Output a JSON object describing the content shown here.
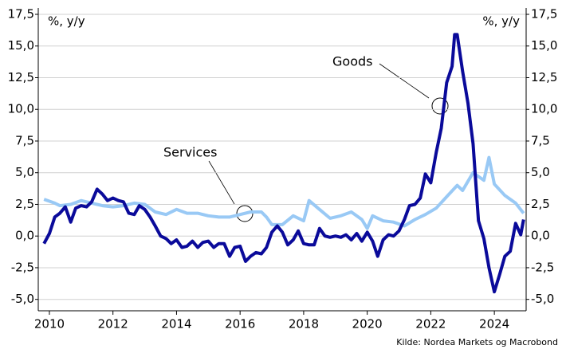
{
  "chart_data": {
    "type": "line",
    "ylabel": "%, y/y",
    "source": "Kilde: Nordea Markets og Macrobond",
    "xlim": [
      2009.65,
      2025.0
    ],
    "xticks": [
      2010,
      2012,
      2014,
      2016,
      2018,
      2020,
      2022,
      2024
    ],
    "ylim": [
      -5.9,
      17.5
    ],
    "yticks": [
      {
        "value": -5,
        "label": "-5,0"
      },
      {
        "value": -2.5,
        "label": "-2,5"
      },
      {
        "value": 0,
        "label": "0,0"
      },
      {
        "value": 2.5,
        "label": "2,5"
      },
      {
        "value": 5,
        "label": "5,0"
      },
      {
        "value": 7.5,
        "label": "7,5"
      },
      {
        "value": 10,
        "label": "10,0"
      },
      {
        "value": 12.5,
        "label": "12,5"
      },
      {
        "value": 15,
        "label": "15,0"
      },
      {
        "value": 17.5,
        "label": "17,5"
      }
    ],
    "grid": true,
    "series": [
      {
        "name": "Goods",
        "color": "#0a0a9a",
        "x": [
          2009.83,
          2010.0,
          2010.17,
          2010.33,
          2010.5,
          2010.67,
          2010.83,
          2011.0,
          2011.17,
          2011.33,
          2011.5,
          2011.67,
          2011.83,
          2012.0,
          2012.17,
          2012.33,
          2012.5,
          2012.67,
          2012.83,
          2013.0,
          2013.17,
          2013.33,
          2013.5,
          2013.67,
          2013.83,
          2014.0,
          2014.17,
          2014.33,
          2014.5,
          2014.67,
          2014.83,
          2015.0,
          2015.17,
          2015.33,
          2015.5,
          2015.67,
          2015.83,
          2016.0,
          2016.17,
          2016.33,
          2016.5,
          2016.67,
          2016.83,
          2017.0,
          2017.17,
          2017.33,
          2017.5,
          2017.67,
          2017.83,
          2018.0,
          2018.17,
          2018.33,
          2018.5,
          2018.67,
          2018.83,
          2019.0,
          2019.17,
          2019.33,
          2019.5,
          2019.67,
          2019.83,
          2020.0,
          2020.17,
          2020.33,
          2020.5,
          2020.67,
          2020.83,
          2021.0,
          2021.17,
          2021.33,
          2021.5,
          2021.67,
          2021.83,
          2022.0,
          2022.17,
          2022.33,
          2022.5,
          2022.67,
          2022.75,
          2022.83,
          2023.0,
          2023.17,
          2023.33,
          2023.5,
          2023.67,
          2023.83,
          2024.0,
          2024.17,
          2024.33,
          2024.5,
          2024.67,
          2024.83,
          2024.92
        ],
        "values": [
          -0.6,
          0.2,
          1.5,
          1.8,
          2.3,
          1.1,
          2.2,
          2.4,
          2.3,
          2.7,
          3.7,
          3.3,
          2.8,
          3.0,
          2.8,
          2.7,
          1.8,
          1.7,
          2.4,
          2.1,
          1.5,
          0.8,
          0.0,
          -0.2,
          -0.6,
          -0.3,
          -0.9,
          -0.8,
          -0.4,
          -0.9,
          -0.5,
          -0.4,
          -0.9,
          -0.6,
          -0.6,
          -1.6,
          -0.9,
          -0.8,
          -2.0,
          -1.6,
          -1.3,
          -1.4,
          -0.9,
          0.3,
          0.8,
          0.3,
          -0.7,
          -0.3,
          0.4,
          -0.6,
          -0.7,
          -0.7,
          0.6,
          0.0,
          -0.1,
          0.0,
          -0.1,
          0.1,
          -0.3,
          0.2,
          -0.4,
          0.3,
          -0.4,
          -1.6,
          -0.3,
          0.1,
          0.0,
          0.4,
          1.3,
          2.4,
          2.5,
          3.0,
          4.9,
          4.2,
          6.6,
          8.5,
          12.1,
          13.4,
          15.9,
          15.9,
          13.0,
          10.5,
          7.3,
          1.2,
          -0.2,
          -2.5,
          -4.4,
          -3.0,
          -1.6,
          -1.2,
          1.0,
          0.1,
          1.3
        ]
      },
      {
        "name": "Services",
        "color": "#99c9f5",
        "x": [
          2009.83,
          2010.17,
          2010.33,
          2010.67,
          2011.0,
          2011.33,
          2011.67,
          2012.0,
          2012.33,
          2012.67,
          2013.0,
          2013.33,
          2013.67,
          2014.0,
          2014.33,
          2014.67,
          2015.0,
          2015.33,
          2015.67,
          2016.0,
          2016.33,
          2016.67,
          2016.83,
          2017.0,
          2017.33,
          2017.67,
          2018.0,
          2018.17,
          2018.5,
          2018.83,
          2019.17,
          2019.5,
          2019.83,
          2020.0,
          2020.17,
          2020.5,
          2020.83,
          2021.17,
          2021.5,
          2021.83,
          2022.17,
          2022.5,
          2022.83,
          2023.0,
          2023.33,
          2023.67,
          2023.83,
          2024.0,
          2024.33,
          2024.67,
          2024.92
        ],
        "values": [
          2.9,
          2.6,
          2.4,
          2.5,
          2.8,
          2.6,
          2.4,
          2.3,
          2.4,
          2.6,
          2.5,
          1.9,
          1.7,
          2.1,
          1.8,
          1.8,
          1.6,
          1.5,
          1.5,
          1.7,
          1.9,
          1.9,
          1.5,
          0.9,
          0.9,
          1.6,
          1.2,
          2.8,
          2.1,
          1.4,
          1.6,
          1.9,
          1.3,
          0.6,
          1.6,
          1.2,
          1.1,
          0.8,
          1.3,
          1.7,
          2.2,
          3.1,
          4.0,
          3.6,
          5.0,
          4.4,
          6.2,
          4.1,
          3.2,
          2.6,
          1.8
        ]
      }
    ]
  }
}
